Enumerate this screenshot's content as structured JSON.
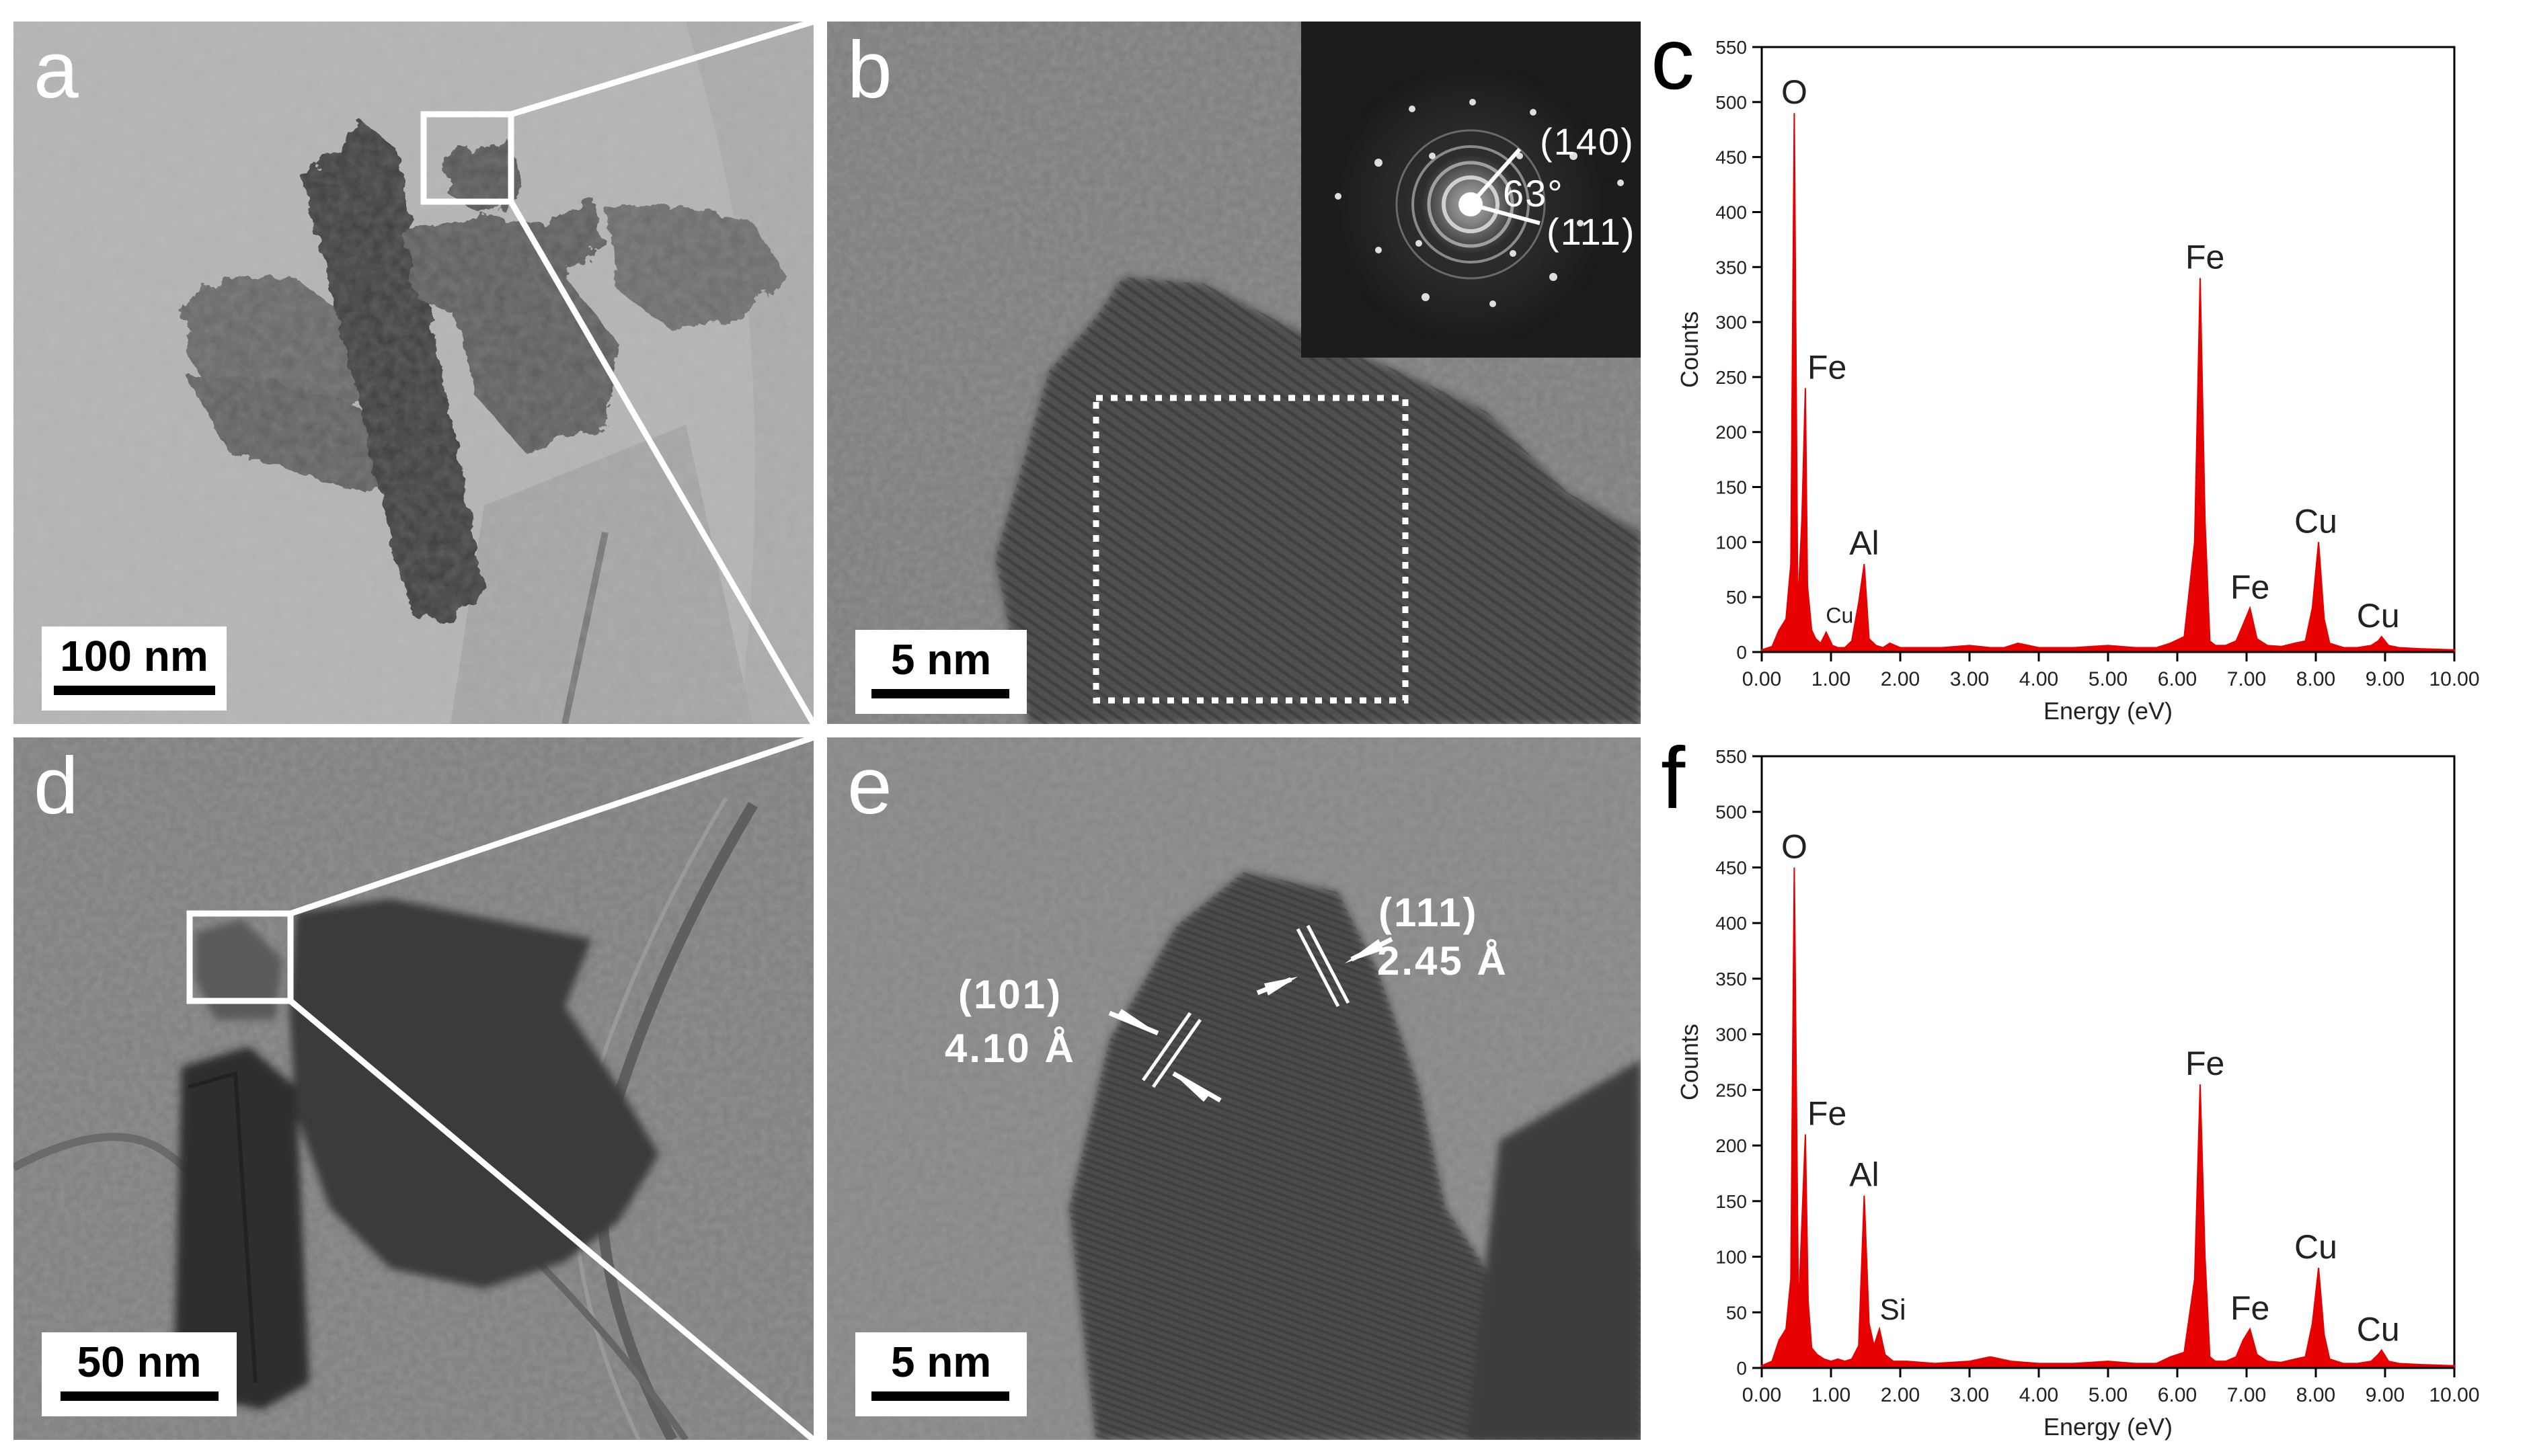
{
  "panels": {
    "a": {
      "label": "a",
      "scale": "100 nm"
    },
    "b": {
      "label": "b",
      "scale": "5 nm",
      "inset": {
        "plane1": "(140)",
        "angle": "63°",
        "plane2": "(111)"
      }
    },
    "c": {
      "label": "c"
    },
    "d": {
      "label": "d",
      "scale": "50 nm"
    },
    "e": {
      "label": "e",
      "scale": "5 nm",
      "fringe1": {
        "plane": "(101)",
        "spacing": "4.10 Å"
      },
      "fringe2": {
        "plane": "(111)",
        "spacing": "2.45 Å"
      }
    },
    "f": {
      "label": "f"
    }
  },
  "colors": {
    "spectrum": "#e60000",
    "axis": "#000000",
    "text": "#333333"
  },
  "chart_data": [
    {
      "id": "c",
      "type": "area",
      "xlabel": "Energy (eV)",
      "ylabel": "Counts",
      "xlim": [
        0,
        10
      ],
      "ylim": [
        0,
        550
      ],
      "xticks": [
        "0.00",
        "1.00",
        "2.00",
        "3.00",
        "4.00",
        "5.00",
        "6.00",
        "7.00",
        "8.00",
        "9.00",
        "10.00"
      ],
      "yticks": [
        "0",
        "50",
        "100",
        "150",
        "200",
        "250",
        "300",
        "350",
        "400",
        "450",
        "500",
        "550"
      ],
      "series": [
        {
          "x": [
            0.0,
            0.15,
            0.25,
            0.35,
            0.42,
            0.47,
            0.52,
            0.58,
            0.63,
            0.66,
            0.72,
            0.78,
            0.85,
            0.93,
            1.02,
            1.1,
            1.2,
            1.3,
            1.4,
            1.48,
            1.55,
            1.65,
            1.75,
            1.85,
            2.0,
            2.3,
            2.6,
            3.0,
            3.3,
            3.5,
            3.7,
            4.0,
            4.5,
            5.0,
            5.4,
            5.7,
            5.9,
            6.1,
            6.25,
            6.33,
            6.4,
            6.47,
            6.55,
            6.7,
            6.85,
            6.95,
            7.05,
            7.15,
            7.3,
            7.5,
            7.7,
            7.85,
            7.95,
            8.04,
            8.12,
            8.2,
            8.4,
            8.6,
            8.8,
            8.9,
            8.95,
            9.05,
            9.2,
            9.5,
            10.0
          ],
          "y": [
            2,
            5,
            20,
            30,
            80,
            490,
            40,
            120,
            240,
            60,
            20,
            12,
            8,
            18,
            6,
            4,
            4,
            10,
            45,
            80,
            12,
            6,
            4,
            8,
            4,
            4,
            4,
            6,
            4,
            4,
            8,
            4,
            4,
            6,
            4,
            4,
            8,
            14,
            100,
            340,
            120,
            10,
            6,
            6,
            10,
            25,
            40,
            12,
            6,
            5,
            8,
            10,
            40,
            100,
            30,
            8,
            4,
            4,
            6,
            10,
            14,
            6,
            4,
            3,
            2
          ]
        }
      ],
      "annotations": [
        {
          "text": "O",
          "x": 0.47,
          "y": 490
        },
        {
          "text": "Fe",
          "x": 0.7,
          "y": 240
        },
        {
          "text": "Al",
          "x": 1.48,
          "y": 80
        },
        {
          "text": "Cu",
          "x": 0.93,
          "y": 18
        },
        {
          "text": "Fe",
          "x": 6.4,
          "y": 340
        },
        {
          "text": "Fe",
          "x": 7.05,
          "y": 40
        },
        {
          "text": "Cu",
          "x": 8.0,
          "y": 100
        },
        {
          "text": "Cu",
          "x": 8.9,
          "y": 14
        }
      ]
    },
    {
      "id": "f",
      "type": "area",
      "xlabel": "Energy (eV)",
      "ylabel": "Counts",
      "xlim": [
        0,
        10
      ],
      "ylim": [
        0,
        550
      ],
      "xticks": [
        "0.00",
        "1.00",
        "2.00",
        "3.00",
        "4.00",
        "5.00",
        "6.00",
        "7.00",
        "8.00",
        "9.00",
        "10.00"
      ],
      "yticks": [
        "0",
        "50",
        "100",
        "150",
        "200",
        "250",
        "300",
        "350",
        "400",
        "450",
        "500",
        "550"
      ],
      "series": [
        {
          "x": [
            0.0,
            0.15,
            0.25,
            0.35,
            0.42,
            0.47,
            0.53,
            0.58,
            0.63,
            0.67,
            0.72,
            0.8,
            0.9,
            1.0,
            1.1,
            1.2,
            1.3,
            1.4,
            1.48,
            1.55,
            1.62,
            1.7,
            1.78,
            1.9,
            2.1,
            2.5,
            3.0,
            3.3,
            3.6,
            4.0,
            4.5,
            5.0,
            5.4,
            5.7,
            5.9,
            6.1,
            6.25,
            6.33,
            6.4,
            6.47,
            6.55,
            6.7,
            6.85,
            6.95,
            7.05,
            7.15,
            7.3,
            7.5,
            7.7,
            7.85,
            7.95,
            8.04,
            8.12,
            8.2,
            8.4,
            8.6,
            8.8,
            8.9,
            8.95,
            9.05,
            9.2,
            9.5,
            10.0
          ],
          "y": [
            2,
            6,
            25,
            35,
            80,
            450,
            50,
            130,
            210,
            60,
            18,
            12,
            8,
            6,
            8,
            6,
            8,
            20,
            155,
            40,
            20,
            35,
            12,
            6,
            6,
            4,
            6,
            10,
            6,
            4,
            4,
            6,
            4,
            4,
            10,
            14,
            80,
            255,
            100,
            10,
            6,
            6,
            10,
            25,
            35,
            12,
            6,
            5,
            8,
            10,
            40,
            90,
            30,
            8,
            4,
            4,
            6,
            12,
            16,
            6,
            4,
            3,
            2
          ]
        }
      ],
      "annotations": [
        {
          "text": "O",
          "x": 0.47,
          "y": 450
        },
        {
          "text": "Fe",
          "x": 0.7,
          "y": 210
        },
        {
          "text": "Al",
          "x": 1.48,
          "y": 155
        },
        {
          "text": "Si",
          "x": 1.7,
          "y": 35
        },
        {
          "text": "Fe",
          "x": 6.4,
          "y": 255
        },
        {
          "text": "Fe",
          "x": 7.05,
          "y": 35
        },
        {
          "text": "Cu",
          "x": 8.0,
          "y": 90
        },
        {
          "text": "Cu",
          "x": 8.9,
          "y": 16
        }
      ]
    }
  ]
}
